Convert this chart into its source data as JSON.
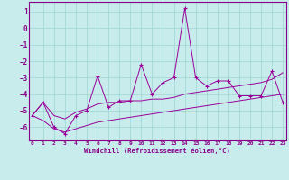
{
  "xlabel": "Windchill (Refroidissement éolien,°C)",
  "x_data": [
    0,
    1,
    2,
    3,
    4,
    5,
    6,
    7,
    8,
    9,
    10,
    11,
    12,
    13,
    14,
    15,
    16,
    17,
    18,
    19,
    20,
    21,
    22,
    23
  ],
  "main_line": [
    -5.3,
    -4.5,
    -6.0,
    -6.4,
    -5.3,
    -5.0,
    -2.9,
    -4.8,
    -4.4,
    -4.4,
    -2.2,
    -4.0,
    -3.3,
    -3.0,
    1.2,
    -3.0,
    -3.5,
    -3.2,
    -3.2,
    -4.1,
    -4.1,
    -4.1,
    -2.6,
    -4.5
  ],
  "line1": [
    -5.3,
    -4.5,
    -5.3,
    -5.5,
    -5.1,
    -4.9,
    -4.6,
    -4.5,
    -4.5,
    -4.4,
    -4.4,
    -4.3,
    -4.3,
    -4.2,
    -4.0,
    -3.9,
    -3.8,
    -3.7,
    -3.6,
    -3.5,
    -3.4,
    -3.3,
    -3.1,
    -2.7
  ],
  "line2": [
    -5.3,
    -5.6,
    -6.1,
    -6.3,
    -6.1,
    -5.9,
    -5.7,
    -5.6,
    -5.5,
    -5.4,
    -5.3,
    -5.2,
    -5.1,
    -5.0,
    -4.9,
    -4.8,
    -4.7,
    -4.6,
    -4.5,
    -4.4,
    -4.3,
    -4.2,
    -4.1,
    -4.0
  ],
  "ylim": [
    -6.8,
    1.6
  ],
  "yticks": [
    -6,
    -5,
    -4,
    -3,
    -2,
    -1,
    0,
    1
  ],
  "xticks": [
    0,
    1,
    2,
    3,
    4,
    5,
    6,
    7,
    8,
    9,
    10,
    11,
    12,
    13,
    14,
    15,
    16,
    17,
    18,
    19,
    20,
    21,
    22,
    23
  ],
  "line_color": "#990099",
  "bg_color": "#c8ecec",
  "grid_color": "#9ed4d4",
  "axis_color": "#880088",
  "tick_color": "#880088",
  "label_color": "#880088"
}
